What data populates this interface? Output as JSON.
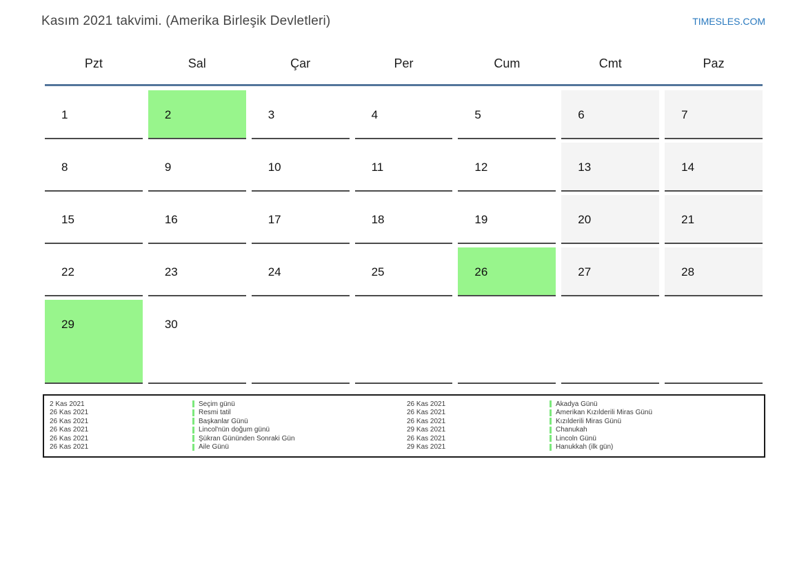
{
  "page": {
    "title": "Kasım 2021 takvimi. (Amerika Birleşik Devletleri)",
    "site_link": "TIMESLES.COM"
  },
  "colors": {
    "highlight_green": "#98F58C",
    "weekend_gray": "#F4F4F4",
    "header_line_blue": "#53759B",
    "cell_border": "#4A4A4A",
    "link_blue": "#2878BE",
    "legend_tick_green": "#7CE87C"
  },
  "calendar": {
    "weekday_headers": [
      "Pzt",
      "Sal",
      "Çar",
      "Per",
      "Cum",
      "Cmt",
      "Paz"
    ],
    "weeks": [
      [
        {
          "day": "1",
          "type": "normal"
        },
        {
          "day": "2",
          "type": "highlight"
        },
        {
          "day": "3",
          "type": "normal"
        },
        {
          "day": "4",
          "type": "normal"
        },
        {
          "day": "5",
          "type": "normal"
        },
        {
          "day": "6",
          "type": "weekend"
        },
        {
          "day": "7",
          "type": "weekend"
        }
      ],
      [
        {
          "day": "8",
          "type": "normal"
        },
        {
          "day": "9",
          "type": "normal"
        },
        {
          "day": "10",
          "type": "normal"
        },
        {
          "day": "11",
          "type": "normal"
        },
        {
          "day": "12",
          "type": "normal"
        },
        {
          "day": "13",
          "type": "weekend"
        },
        {
          "day": "14",
          "type": "weekend"
        }
      ],
      [
        {
          "day": "15",
          "type": "normal"
        },
        {
          "day": "16",
          "type": "normal"
        },
        {
          "day": "17",
          "type": "normal"
        },
        {
          "day": "18",
          "type": "normal"
        },
        {
          "day": "19",
          "type": "normal"
        },
        {
          "day": "20",
          "type": "weekend"
        },
        {
          "day": "21",
          "type": "weekend"
        }
      ],
      [
        {
          "day": "22",
          "type": "normal"
        },
        {
          "day": "23",
          "type": "normal"
        },
        {
          "day": "24",
          "type": "normal"
        },
        {
          "day": "25",
          "type": "normal"
        },
        {
          "day": "26",
          "type": "highlight"
        },
        {
          "day": "27",
          "type": "weekend"
        },
        {
          "day": "28",
          "type": "weekend"
        }
      ],
      [
        {
          "day": "29",
          "type": "highlight"
        },
        {
          "day": "30",
          "type": "normal"
        },
        {
          "day": "",
          "type": "empty"
        },
        {
          "day": "",
          "type": "empty"
        },
        {
          "day": "",
          "type": "empty"
        },
        {
          "day": "",
          "type": "empty"
        },
        {
          "day": "",
          "type": "empty"
        }
      ]
    ]
  },
  "legend": {
    "left": [
      {
        "date": "2 Kas 2021",
        "name": "Seçim günü"
      },
      {
        "date": "26 Kas 2021",
        "name": "Resmi tatil"
      },
      {
        "date": "26 Kas 2021",
        "name": "Başkanlar Günü"
      },
      {
        "date": "26 Kas 2021",
        "name": "Lincol'nün doğum günü"
      },
      {
        "date": "26 Kas 2021",
        "name": "Şükran Gününden Sonraki Gün"
      },
      {
        "date": "26 Kas 2021",
        "name": "Aile Günü"
      }
    ],
    "right": [
      {
        "date": "26 Kas 2021",
        "name": "Akadya Günü"
      },
      {
        "date": "26 Kas 2021",
        "name": "Amerikan Kızılderili Miras Günü"
      },
      {
        "date": "26 Kas 2021",
        "name": "Kızılderili Miras Günü"
      },
      {
        "date": "29 Kas 2021",
        "name": "Chanukah"
      },
      {
        "date": "26 Kas 2021",
        "name": "Lincoln Günü"
      },
      {
        "date": "29 Kas 2021",
        "name": "Hanukkah (ilk gün)"
      }
    ]
  }
}
